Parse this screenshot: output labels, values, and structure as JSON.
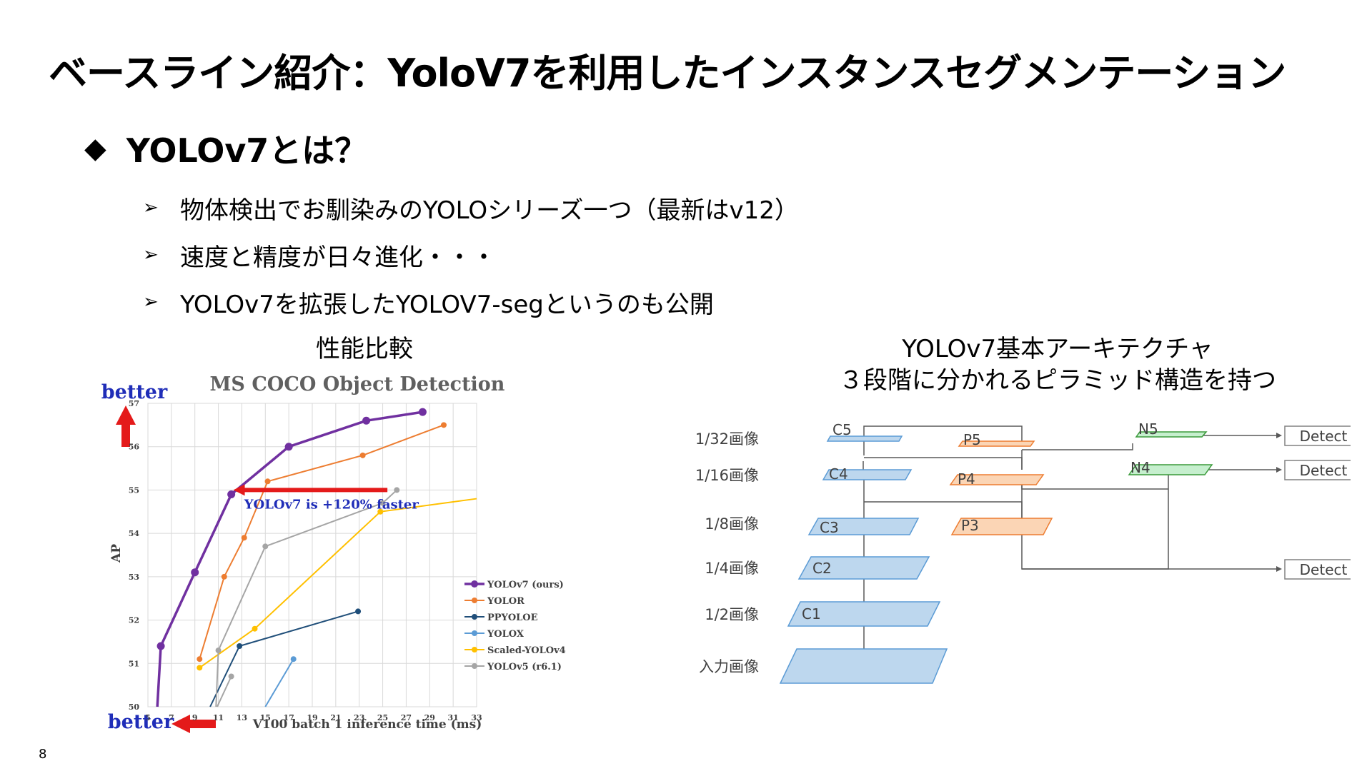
{
  "slide": {
    "title": "ベースライン紹介：YoloV7を利用したインスタンスセグメンテーション",
    "heading": "YOLOv7とは？",
    "heading_marker": "◆",
    "bullet_marker": "➢",
    "bullets": [
      "物体検出でお馴染みのYOLOシリーズ一つ（最新はv12）",
      "速度と精度が日々進化・・・",
      "YOLOv7を拡張したYOLOV7-segというのも公開"
    ],
    "left_caption": "性能比較",
    "right_caption_line1": "YOLOv7基本アーキテクチャ",
    "right_caption_line2": "３段階に分かれるピラミッド構造を持つ",
    "page_number": "8"
  },
  "chart_data": {
    "type": "line",
    "title": "MS COCO Object Detection",
    "xlabel": "V100 batch 1 inference time (ms)",
    "ylabel": "AP",
    "xlim": [
      5,
      33
    ],
    "ylim": [
      50,
      57
    ],
    "xticks": [
      5,
      7,
      9,
      11,
      13,
      15,
      17,
      19,
      21,
      23,
      25,
      27,
      29,
      31,
      33
    ],
    "yticks": [
      50,
      51,
      52,
      53,
      54,
      55,
      56,
      57
    ],
    "grid": true,
    "legend_position": "bottom-right",
    "better_label_y": "better",
    "better_label_x": "better",
    "annotation": "YOLOv7 is +120% faster",
    "annotation_arrow": {
      "x_from": 12.4,
      "x_to": 25.4,
      "y": 55.0
    },
    "series": [
      {
        "name": "YOLOv7 (ours)",
        "color": "#7030a0",
        "bold": true,
        "points": [
          [
            5.8,
            50.0
          ],
          [
            6.1,
            51.4
          ],
          [
            9.0,
            53.1
          ],
          [
            12.1,
            54.9
          ],
          [
            17.0,
            56.0
          ],
          [
            23.6,
            56.6
          ],
          [
            28.4,
            56.8
          ]
        ]
      },
      {
        "name": "YOLOR",
        "color": "#ed7d31",
        "points": [
          [
            9.4,
            51.1
          ],
          [
            11.5,
            53.0
          ],
          [
            13.2,
            53.9
          ],
          [
            15.2,
            55.2
          ],
          [
            23.3,
            55.8
          ],
          [
            30.2,
            56.5
          ]
        ]
      },
      {
        "name": "PPYOLOE",
        "color": "#1f4e79",
        "points": [
          [
            10.3,
            50.0
          ],
          [
            12.8,
            51.4
          ],
          [
            22.9,
            52.2
          ]
        ]
      },
      {
        "name": "YOLOX",
        "color": "#5b9bd5",
        "points": [
          [
            15.0,
            50.0
          ],
          [
            17.4,
            51.1
          ]
        ]
      },
      {
        "name": "Scaled-YOLOv4",
        "color": "#ffc000",
        "points": [
          [
            9.4,
            50.9
          ],
          [
            14.1,
            51.8
          ],
          [
            24.8,
            54.5
          ],
          [
            33.0,
            54.8
          ]
        ]
      },
      {
        "name": "YOLOv5 (r6.1)",
        "color": "#a5a5a5",
        "points": [
          [
            10.8,
            50.0
          ],
          [
            11.0,
            51.3
          ],
          [
            15.0,
            53.7
          ],
          [
            25.0,
            54.7
          ],
          [
            26.2,
            55.0
          ]
        ]
      },
      {
        "name": "",
        "color": "#a5a5a5",
        "points": [
          [
            10.9,
            50.0
          ],
          [
            12.1,
            50.7
          ]
        ]
      }
    ]
  },
  "architecture": {
    "row_labels": [
      "1/32画像",
      "1/16画像",
      "1/8画像",
      "1/4画像",
      "1/2画像",
      "入力画像"
    ],
    "backbone": [
      "C5",
      "C4",
      "C3",
      "C2",
      "C1"
    ],
    "fpn": [
      "P5",
      "P4",
      "P3"
    ],
    "pan": [
      "N5",
      "N4"
    ],
    "detect": [
      "Detect",
      "Detect",
      "Detect"
    ],
    "colors": {
      "backbone": "#bdd7ee",
      "fpn": "#fbd5b5",
      "pan": "#c6efce",
      "line": "#595959"
    }
  }
}
